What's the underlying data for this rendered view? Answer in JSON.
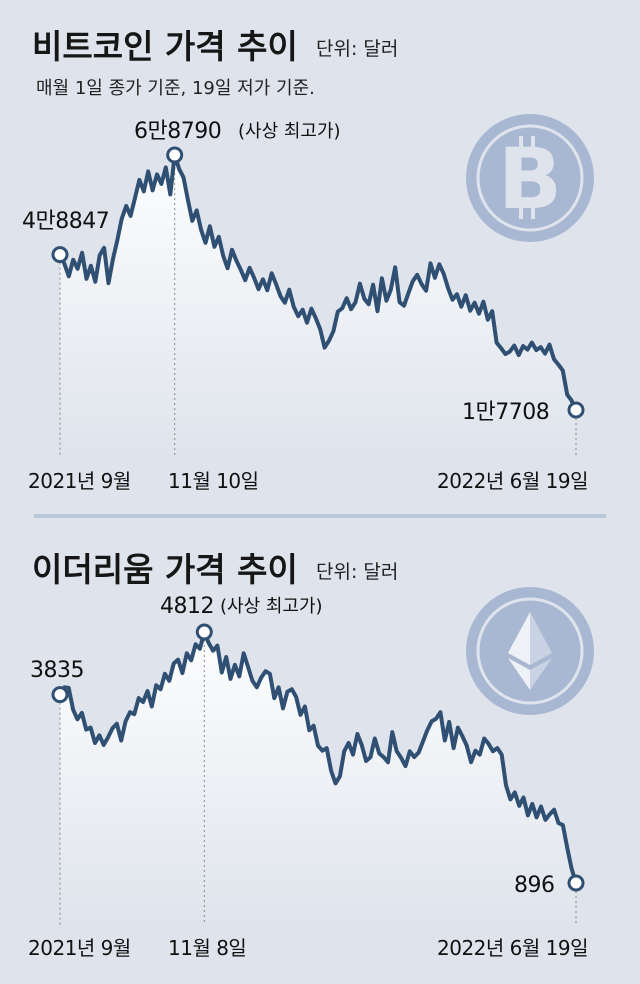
{
  "chart_data": [
    {
      "type": "area",
      "title": "비트코인 가격 추이",
      "unit": "단위: 달러",
      "note": "매월 1일 종가 기준, 19일 저가 기준.",
      "icon": "bitcoin-icon",
      "x_ticks": [
        "2021년 9월",
        "11월 10일",
        "2022년 6월 19일"
      ],
      "points": [
        {
          "label": "4만8847",
          "value": 48847
        },
        {
          "label": "6만8790",
          "value": 68790,
          "suffix": "(사상 최고가)"
        },
        {
          "label": "1만7708",
          "value": 17708
        }
      ],
      "ylim": [
        15000,
        70000
      ],
      "values": [
        48847,
        47000,
        44500,
        47800,
        46000,
        49200,
        44000,
        46600,
        43400,
        48700,
        50200,
        43100,
        47900,
        51700,
        56000,
        58600,
        56600,
        60200,
        63800,
        61500,
        65500,
        61700,
        64900,
        63000,
        66300,
        60900,
        68790,
        66000,
        64300,
        59800,
        55600,
        57700,
        53800,
        51200,
        54500,
        50400,
        52400,
        48600,
        46100,
        49800,
        47600,
        45800,
        43700,
        46200,
        44200,
        41900,
        43900,
        41700,
        45100,
        42900,
        40500,
        39200,
        41800,
        38400,
        36500,
        37800,
        35200,
        38000,
        36100,
        33900,
        30200,
        31600,
        33500,
        37400,
        38100,
        40100,
        37900,
        39300,
        43000,
        40000,
        38900,
        42800,
        37500,
        44100,
        39600,
        41800,
        46300,
        39300,
        38600,
        41100,
        43500,
        44800,
        42900,
        41600,
        47100,
        44200,
        46900,
        45000,
        42100,
        39800,
        40900,
        38400,
        40700,
        37600,
        39200,
        37000,
        39400,
        35800,
        37500,
        31200,
        30100,
        28900,
        29400,
        30600,
        28700,
        30500,
        29800,
        31200,
        29700,
        30300,
        29000,
        30800,
        27900,
        26800,
        25600,
        20800,
        19600,
        17708
      ]
    },
    {
      "type": "area",
      "title": "이더리움 가격 추이",
      "unit": "단위: 달러",
      "icon": "ethereum-icon",
      "x_ticks": [
        "2021년 9월",
        "11월 8일",
        "2022년 6월 19일"
      ],
      "points": [
        {
          "label": "3835",
          "value": 3835
        },
        {
          "label": "4812",
          "value": 4812,
          "suffix": "(사상 최고가)"
        },
        {
          "label": "896",
          "value": 896
        }
      ],
      "ylim": [
        700,
        5000
      ],
      "values": [
        3835,
        3950,
        3940,
        3600,
        3450,
        3550,
        3290,
        3320,
        3080,
        3200,
        3050,
        3170,
        3310,
        3380,
        3120,
        3420,
        3560,
        3530,
        3780,
        3720,
        3890,
        3650,
        3980,
        3920,
        4160,
        4050,
        4320,
        4380,
        4170,
        4480,
        4370,
        4620,
        4550,
        4812,
        4640,
        4520,
        4600,
        4180,
        4420,
        4080,
        4300,
        4120,
        4480,
        4270,
        4050,
        3950,
        4100,
        4200,
        4160,
        3780,
        3950,
        3620,
        3880,
        3920,
        3800,
        3520,
        3650,
        3280,
        3350,
        3040,
        2960,
        3000,
        2650,
        2450,
        2560,
        2950,
        3080,
        2900,
        3220,
        3050,
        2800,
        2860,
        3150,
        2920,
        2860,
        2780,
        3250,
        2950,
        2850,
        2720,
        2950,
        2860,
        2930,
        3100,
        3280,
        3420,
        3460,
        3560,
        3120,
        3410,
        3000,
        3320,
        3190,
        3040,
        2780,
        2960,
        2900,
        3150,
        3070,
        2950,
        3000,
        2900,
        2420,
        2200,
        2310,
        2100,
        2230,
        1950,
        2130,
        1920,
        2090,
        1880,
        1970,
        2040,
        1830,
        1800,
        1440,
        1120,
        896
      ]
    }
  ]
}
